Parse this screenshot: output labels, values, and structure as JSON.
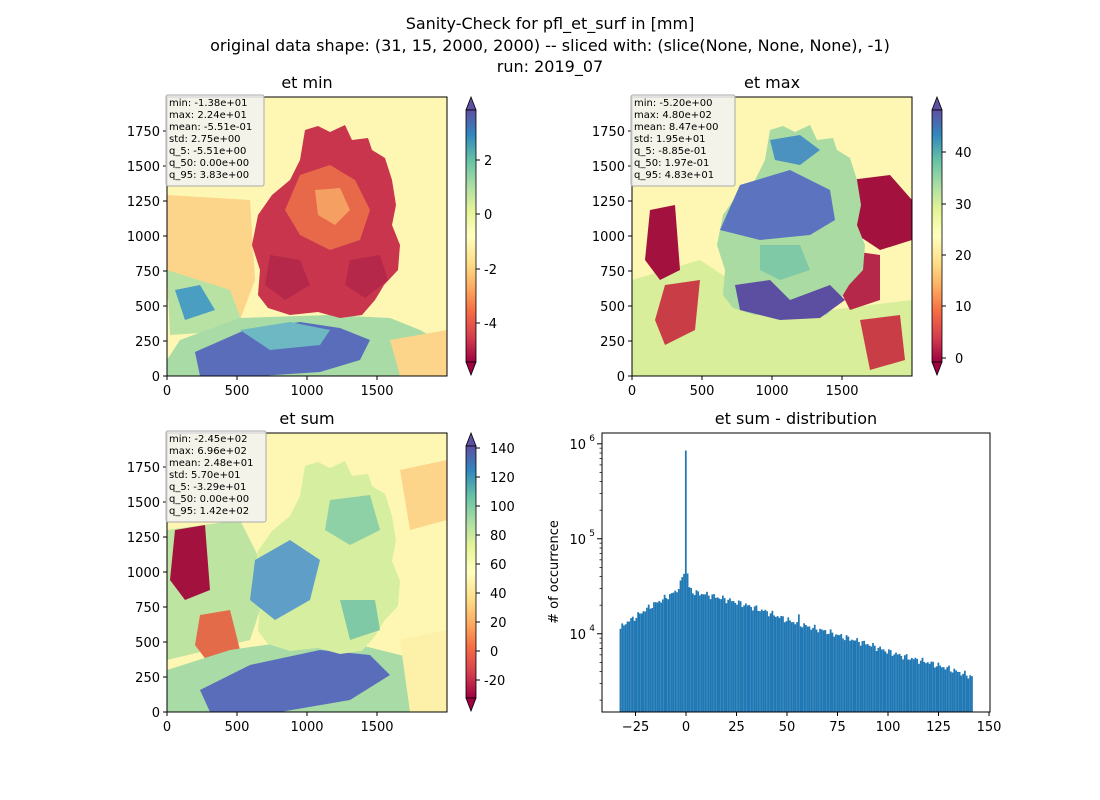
{
  "figure": {
    "suptitle": [
      "Sanity-Check for pfl_et_surf in [mm]",
      "original data shape: (31, 15, 2000, 2000) -- sliced with: (slice(None, None, None), -1)",
      "run: 2019_07"
    ]
  },
  "chart_data": [
    {
      "type": "heatmap",
      "title": "et min",
      "xlabel": "",
      "ylabel": "",
      "xlim": [
        0,
        2000
      ],
      "ylim": [
        0,
        2000
      ],
      "xticks": [
        0,
        500,
        1000,
        1500
      ],
      "yticks": [
        0,
        250,
        500,
        750,
        1000,
        1250,
        1500,
        1750
      ],
      "colormap": "Spectral",
      "colorbar": {
        "vmin": -5.51,
        "vmax": 3.83,
        "ticks": [
          -4,
          -2,
          0,
          2
        ],
        "extend": "both"
      },
      "stats": [
        "min: -1.38e+01",
        "max: 2.24e+01",
        "mean: -5.51e-01",
        "std: 2.75e+00",
        "q_5: -5.51e+00",
        "q_50: 0.00e+00",
        "q_95: 3.83e+00"
      ]
    },
    {
      "type": "heatmap",
      "title": "et max",
      "xlabel": "",
      "ylabel": "",
      "xlim": [
        0,
        2000
      ],
      "ylim": [
        0,
        2000
      ],
      "xticks": [
        0,
        500,
        1000,
        1500
      ],
      "yticks": [
        0,
        250,
        500,
        750,
        1000,
        1250,
        1500,
        1750
      ],
      "colormap": "Spectral",
      "colorbar": {
        "vmin": -0.885,
        "vmax": 48.3,
        "ticks": [
          0,
          10,
          20,
          30,
          40
        ],
        "extend": "both"
      },
      "stats": [
        "min: -5.20e+00",
        "max: 4.80e+02",
        "mean: 8.47e+00",
        "std: 1.95e+01",
        "q_5: -8.85e-01",
        "q_50: 1.97e-01",
        "q_95: 4.83e+01"
      ]
    },
    {
      "type": "heatmap",
      "title": "et sum",
      "xlabel": "",
      "ylabel": "",
      "xlim": [
        0,
        2000
      ],
      "ylim": [
        0,
        2000
      ],
      "xticks": [
        0,
        500,
        1000,
        1500
      ],
      "yticks": [
        0,
        250,
        500,
        750,
        1000,
        1250,
        1500,
        1750
      ],
      "colormap": "Spectral",
      "colorbar": {
        "vmin": -32.9,
        "vmax": 142,
        "ticks": [
          -20,
          0,
          20,
          40,
          60,
          80,
          100,
          120,
          140
        ],
        "extend": "both"
      },
      "stats": [
        "min: -2.45e+02",
        "max: 6.96e+02",
        "mean: 2.48e+01",
        "std: 5.70e+01",
        "q_5: -3.29e+01",
        "q_50: 0.00e+00",
        "q_95: 1.42e+02"
      ]
    },
    {
      "type": "bar",
      "title": "et sum - distribution",
      "xlabel": "",
      "ylabel": "# of occurrence",
      "yscale": "log",
      "xlim": [
        -41.6,
        150.5
      ],
      "ylim": [
        1500,
        1300000
      ],
      "xticks": [
        -25,
        0,
        25,
        50,
        75,
        100,
        125,
        150
      ],
      "yticks": [
        10000,
        100000,
        1000000
      ],
      "ytick_labels": [
        "10^4",
        "10^5",
        "10^6"
      ],
      "color": "#1f77b4",
      "bin_range": [
        -32.9,
        142
      ],
      "bins": 200,
      "profile_x": [
        -32.9,
        -30,
        -25,
        -20,
        -15,
        -10,
        -5,
        -3,
        -1,
        -0.5,
        0,
        0.5,
        1,
        3,
        5,
        10,
        20,
        30,
        40,
        50,
        60,
        70,
        80,
        90,
        100,
        110,
        120,
        130,
        142
      ],
      "profile_y": [
        11000,
        13000,
        15000,
        18000,
        21000,
        24000,
        28000,
        32000,
        45000,
        70000,
        850000,
        60000,
        32000,
        28000,
        27000,
        26000,
        23000,
        20000,
        17000,
        14000,
        12000,
        10500,
        9000,
        7800,
        6500,
        5600,
        5000,
        4300,
        3500
      ],
      "spikes": [
        [
          0,
          850000
        ],
        [
          56,
          16000
        ]
      ]
    }
  ]
}
